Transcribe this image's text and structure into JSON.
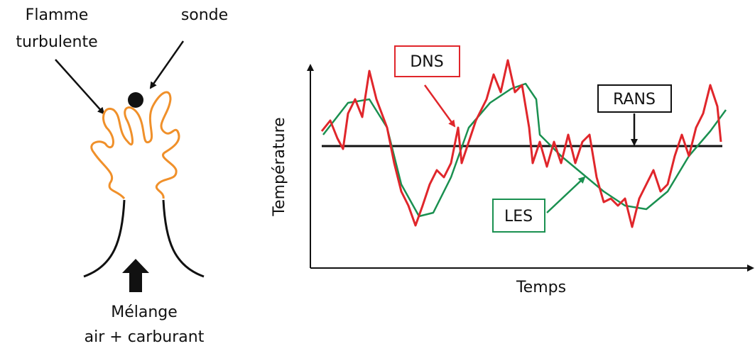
{
  "flame": {
    "label_lines": [
      "Flamme",
      "turbulente"
    ],
    "probe": "sonde",
    "mixture_lines": [
      "Mélange",
      "air + carburant"
    ]
  },
  "plot": {
    "y_axis_label": "Température",
    "x_axis_label": "Temps",
    "dns": "DNS",
    "rans": "RANS",
    "les": "LES"
  }
}
